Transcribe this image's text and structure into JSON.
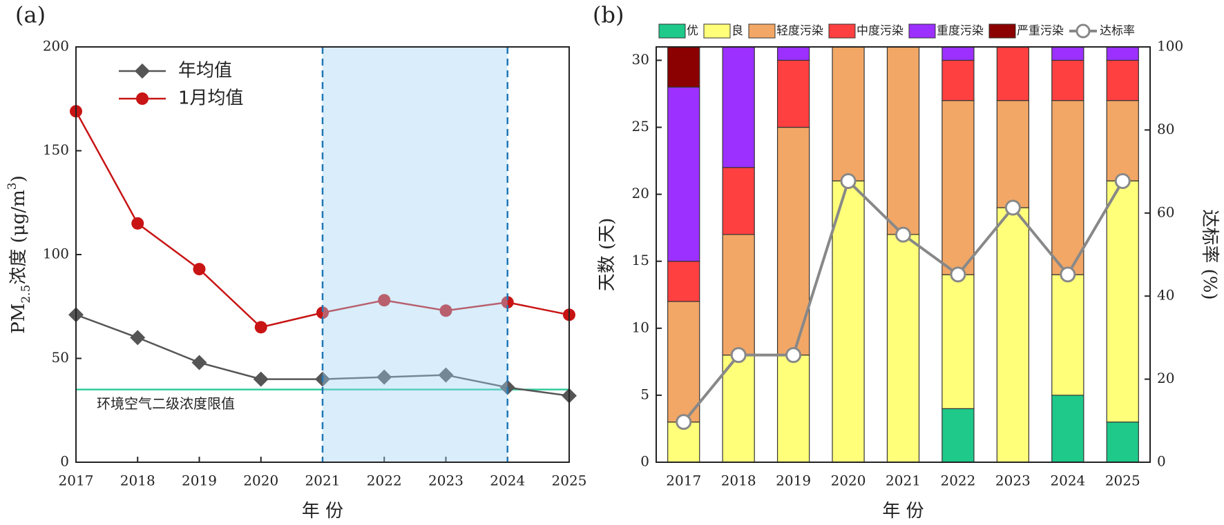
{
  "chart_data": [
    {
      "type": "line",
      "panel_label": "(a)",
      "xlabel": "年 份",
      "ylabel": {
        "main": "PM",
        "sub": "2.5",
        "rest": "浓度 (μg/m",
        "sup": "3",
        "end": ")"
      },
      "x": [
        2017,
        2018,
        2019,
        2020,
        2021,
        2022,
        2023,
        2024,
        2025
      ],
      "xlim": [
        2017,
        2025
      ],
      "xticks": [
        2017,
        2018,
        2019,
        2020,
        2021,
        2022,
        2023,
        2024,
        2025
      ],
      "ylim": [
        0,
        200
      ],
      "yticks": [
        0,
        50,
        100,
        150,
        200
      ],
      "series": [
        {
          "name": "年均值",
          "color": "#555555",
          "marker": "diamond",
          "values": [
            71,
            60,
            48,
            40,
            40,
            41,
            42,
            36,
            32
          ]
        },
        {
          "name": "1月均值",
          "color": "#c81414",
          "marker": "circle",
          "values": [
            169,
            115,
            93,
            65,
            72,
            78,
            73,
            77,
            71
          ]
        }
      ],
      "reference_line": {
        "value": 35,
        "label": "环境空气二级浓度限值",
        "color": "#2ecc9a"
      },
      "highlight_range": [
        2021,
        2024
      ],
      "highlight_color": "#9fd3f5",
      "highlight_line_color": "#1f77b4"
    },
    {
      "type": "stacked_bar",
      "panel_label": "(b)",
      "xlabel": "年 份",
      "ylabel": "天数 (天)",
      "y2label": "达标率 (%)",
      "categories": [
        "2017",
        "2018",
        "2019",
        "2020",
        "2021",
        "2022",
        "2023",
        "2024",
        "2025"
      ],
      "ylim": [
        0,
        31
      ],
      "yticks": [
        0,
        5,
        10,
        15,
        20,
        25,
        30
      ],
      "y2lim": [
        0,
        100
      ],
      "y2ticks": [
        0,
        20,
        40,
        60,
        80,
        100
      ],
      "series": [
        {
          "name": "优",
          "color": "#1ec98a",
          "values": [
            0,
            0,
            0,
            0,
            0,
            4,
            0,
            5,
            3
          ]
        },
        {
          "name": "良",
          "color": "#ffff7a",
          "values": [
            3,
            8,
            8,
            21,
            17,
            10,
            19,
            9,
            18
          ]
        },
        {
          "name": "轻度污染",
          "color": "#f2a766",
          "values": [
            9,
            9,
            17,
            10,
            14,
            13,
            8,
            13,
            6
          ]
        },
        {
          "name": "中度污染",
          "color": "#ff4040",
          "values": [
            3,
            5,
            5,
            0,
            0,
            3,
            4,
            3,
            3
          ]
        },
        {
          "name": "重度污染",
          "color": "#9b30ff",
          "values": [
            13,
            9,
            1,
            0,
            0,
            1,
            0,
            1,
            1
          ]
        },
        {
          "name": "严重污染",
          "color": "#8b0000",
          "values": [
            3,
            0,
            0,
            0,
            0,
            0,
            0,
            0,
            0
          ]
        },
        {
          "name": "达标率",
          "type": "line",
          "axis": "y2",
          "color": "#888888",
          "values": [
            9.7,
            25.8,
            25.8,
            67.7,
            54.8,
            45.2,
            61.3,
            45.2,
            67.7
          ]
        }
      ]
    }
  ]
}
